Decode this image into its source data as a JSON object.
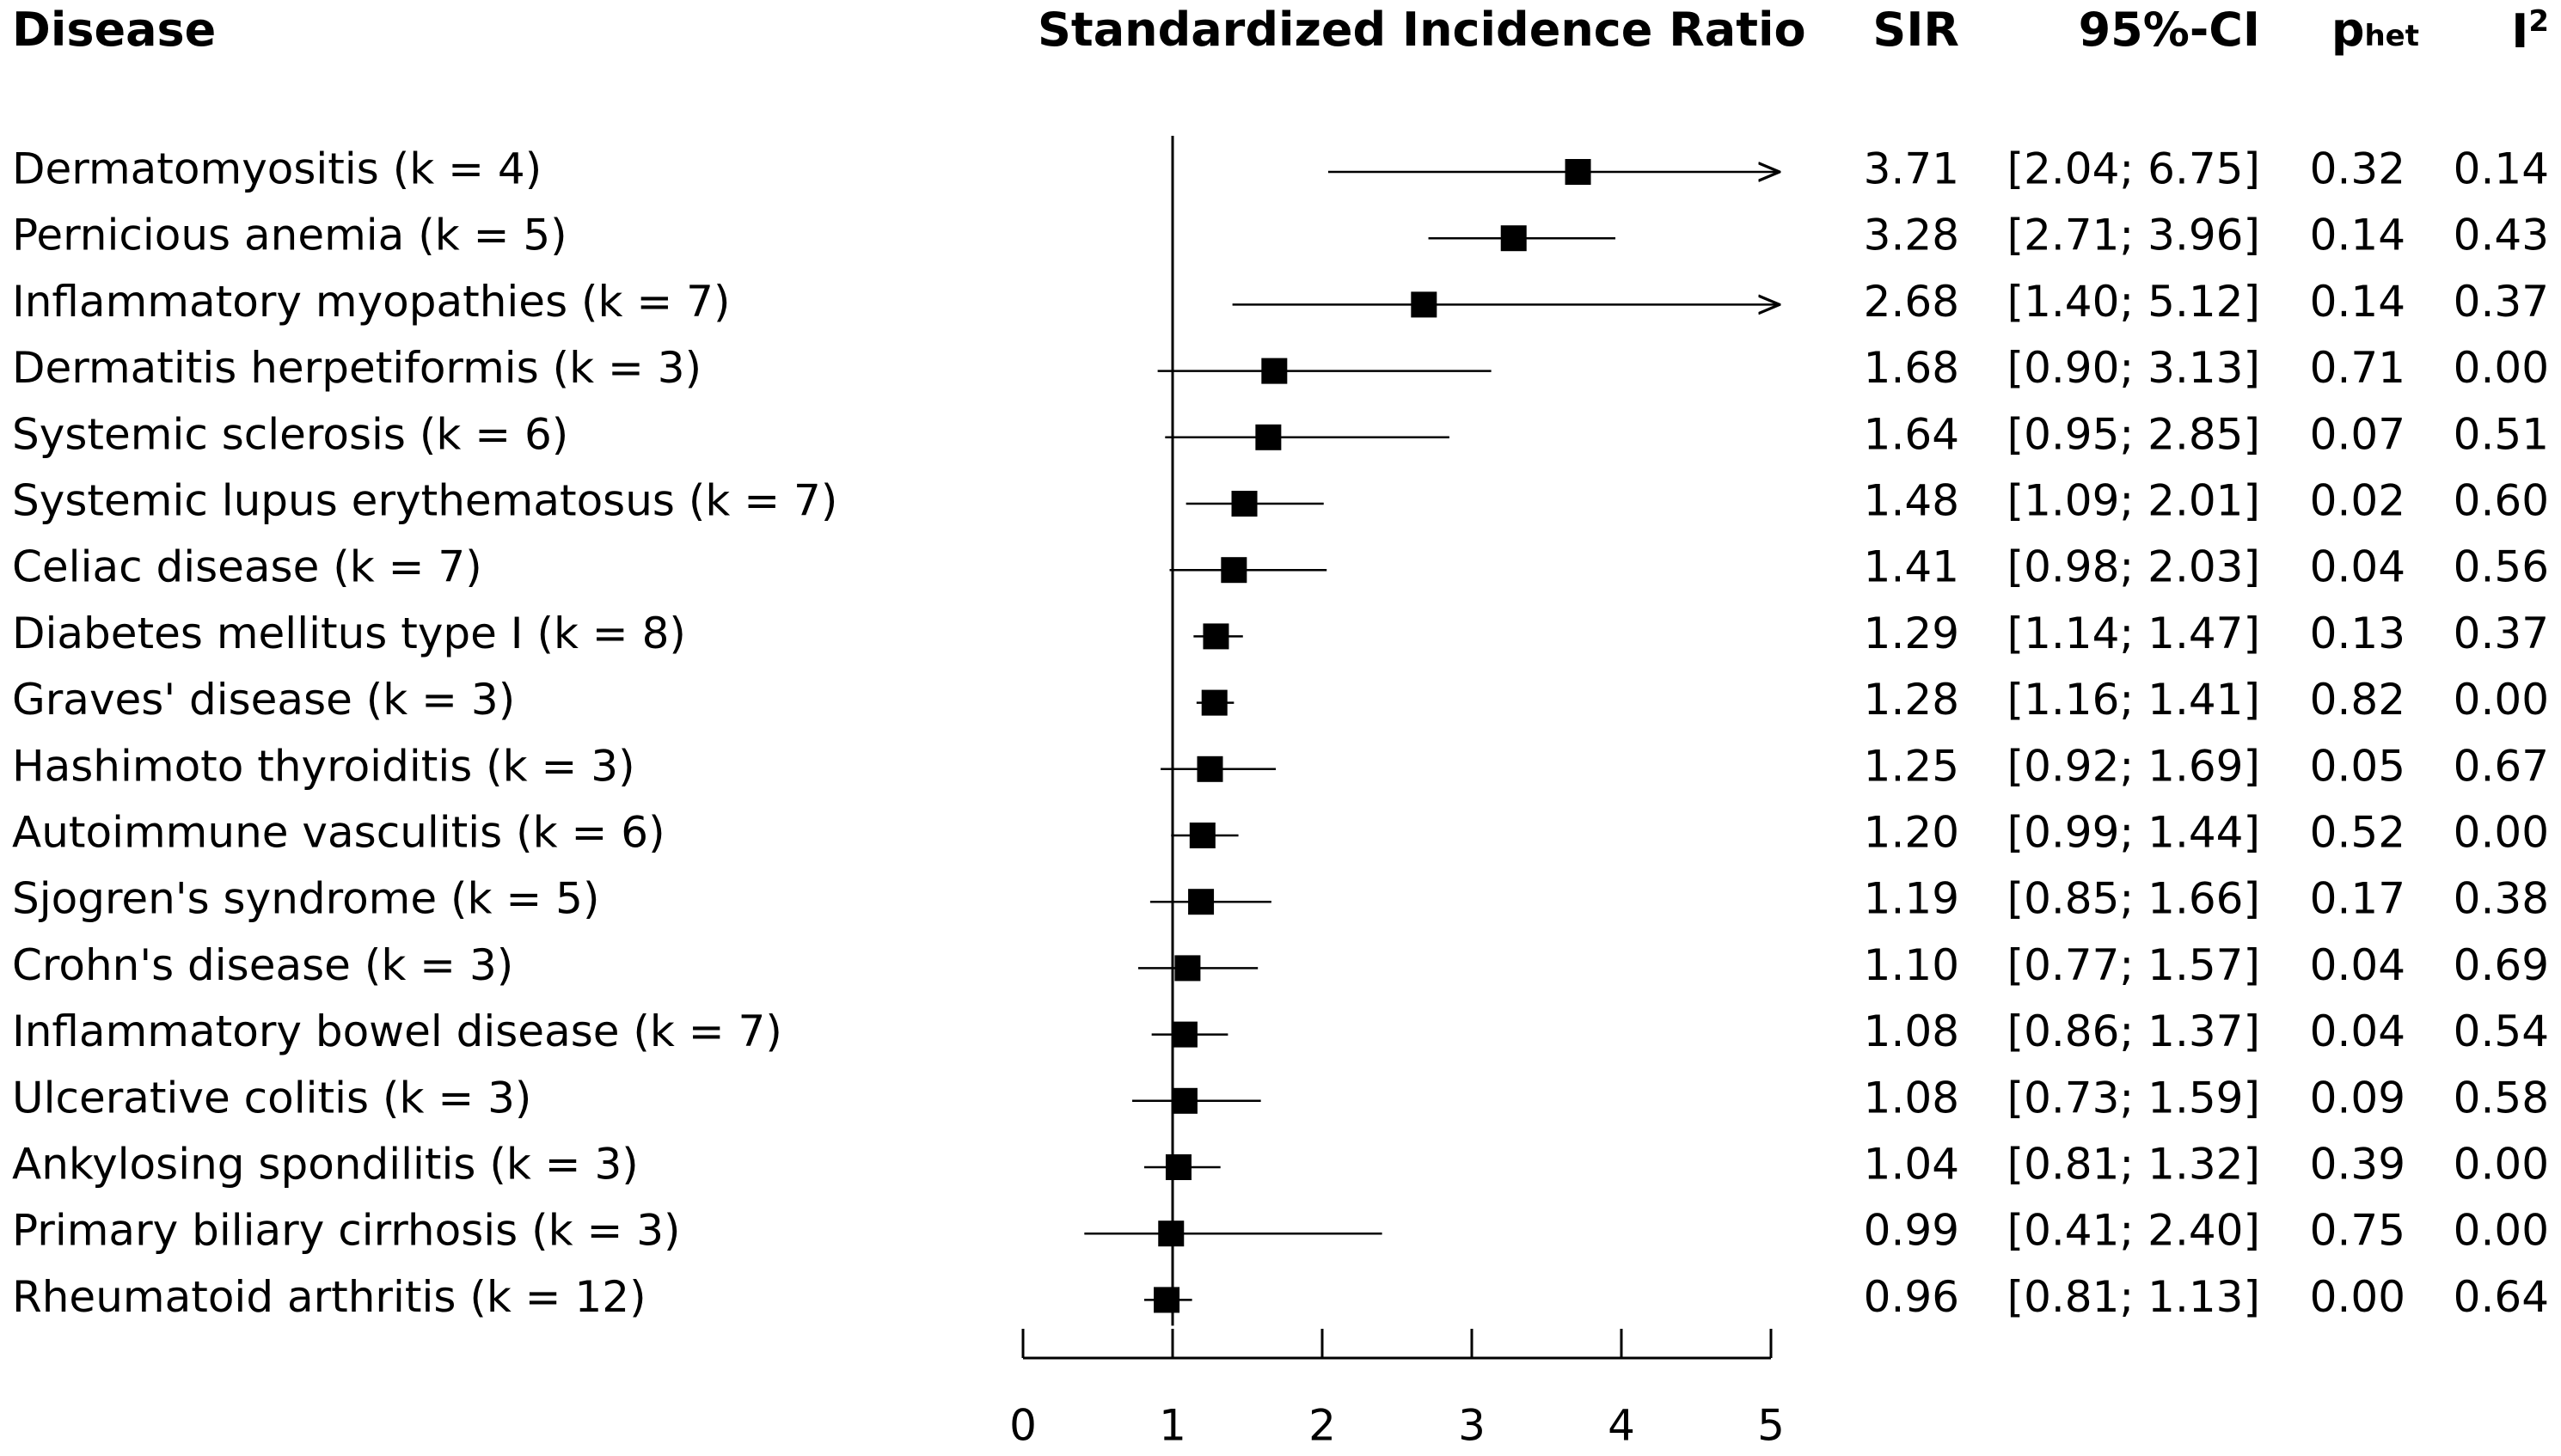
{
  "headers": {
    "disease": "Disease",
    "chart_title": "Standardized Incidence Ratio",
    "sir": "SIR",
    "ci": "95%-CI",
    "phet_p": "p",
    "phet_sub": "het",
    "i2_base": "I",
    "i2_sup": "2"
  },
  "chart_data": {
    "type": "forest",
    "title": "Standardized Incidence Ratio",
    "xlabel": "",
    "xlim": [
      0,
      5
    ],
    "xticks": [
      "0",
      "1",
      "2",
      "3",
      "4",
      "5"
    ],
    "reference_line": 1,
    "rows": [
      {
        "label": "Dermatomyositis (k = 4)",
        "sir": 3.71,
        "lower": 2.04,
        "upper": 6.75,
        "sir_text": "3.71",
        "ci_text": "[2.04; 6.75]",
        "phet_text": "0.32",
        "i2_text": "0.14"
      },
      {
        "label": "Pernicious anemia (k = 5)",
        "sir": 3.28,
        "lower": 2.71,
        "upper": 3.96,
        "sir_text": "3.28",
        "ci_text": "[2.71; 3.96]",
        "phet_text": "0.14",
        "i2_text": "0.43"
      },
      {
        "label": "Inflammatory myopathies (k = 7)",
        "sir": 2.68,
        "lower": 1.4,
        "upper": 5.12,
        "sir_text": "2.68",
        "ci_text": "[1.40; 5.12]",
        "phet_text": "0.14",
        "i2_text": "0.37"
      },
      {
        "label": "Dermatitis herpetiformis (k = 3)",
        "sir": 1.68,
        "lower": 0.9,
        "upper": 3.13,
        "sir_text": "1.68",
        "ci_text": "[0.90; 3.13]",
        "phet_text": "0.71",
        "i2_text": "0.00"
      },
      {
        "label": "Systemic sclerosis (k = 6)",
        "sir": 1.64,
        "lower": 0.95,
        "upper": 2.85,
        "sir_text": "1.64",
        "ci_text": "[0.95; 2.85]",
        "phet_text": "0.07",
        "i2_text": "0.51"
      },
      {
        "label": "Systemic lupus erythematosus (k = 7)",
        "sir": 1.48,
        "lower": 1.09,
        "upper": 2.01,
        "sir_text": "1.48",
        "ci_text": "[1.09; 2.01]",
        "phet_text": "0.02",
        "i2_text": "0.60"
      },
      {
        "label": "Celiac disease (k = 7)",
        "sir": 1.41,
        "lower": 0.98,
        "upper": 2.03,
        "sir_text": "1.41",
        "ci_text": "[0.98; 2.03]",
        "phet_text": "0.04",
        "i2_text": "0.56"
      },
      {
        "label": "Diabetes mellitus type I (k = 8)",
        "sir": 1.29,
        "lower": 1.14,
        "upper": 1.47,
        "sir_text": "1.29",
        "ci_text": "[1.14; 1.47]",
        "phet_text": "0.13",
        "i2_text": "0.37"
      },
      {
        "label": "Graves' disease (k = 3)",
        "sir": 1.28,
        "lower": 1.16,
        "upper": 1.41,
        "sir_text": "1.28",
        "ci_text": "[1.16; 1.41]",
        "phet_text": "0.82",
        "i2_text": "0.00"
      },
      {
        "label": "Hashimoto thyroiditis (k = 3)",
        "sir": 1.25,
        "lower": 0.92,
        "upper": 1.69,
        "sir_text": "1.25",
        "ci_text": "[0.92; 1.69]",
        "phet_text": "0.05",
        "i2_text": "0.67"
      },
      {
        "label": "Autoimmune vasculitis (k = 6)",
        "sir": 1.2,
        "lower": 0.99,
        "upper": 1.44,
        "sir_text": "1.20",
        "ci_text": "[0.99; 1.44]",
        "phet_text": "0.52",
        "i2_text": "0.00"
      },
      {
        "label": "Sjogren's syndrome (k = 5)",
        "sir": 1.19,
        "lower": 0.85,
        "upper": 1.66,
        "sir_text": "1.19",
        "ci_text": "[0.85; 1.66]",
        "phet_text": "0.17",
        "i2_text": "0.38"
      },
      {
        "label": "Crohn's disease (k = 3)",
        "sir": 1.1,
        "lower": 0.77,
        "upper": 1.57,
        "sir_text": "1.10",
        "ci_text": "[0.77; 1.57]",
        "phet_text": "0.04",
        "i2_text": "0.69"
      },
      {
        "label": "Inflammatory bowel disease (k = 7)",
        "sir": 1.08,
        "lower": 0.86,
        "upper": 1.37,
        "sir_text": "1.08",
        "ci_text": "[0.86; 1.37]",
        "phet_text": "0.04",
        "i2_text": "0.54"
      },
      {
        "label": "Ulcerative colitis (k = 3)",
        "sir": 1.08,
        "lower": 0.73,
        "upper": 1.59,
        "sir_text": "1.08",
        "ci_text": "[0.73; 1.59]",
        "phet_text": "0.09",
        "i2_text": "0.58"
      },
      {
        "label": "Ankylosing spondilitis (k = 3)",
        "sir": 1.04,
        "lower": 0.81,
        "upper": 1.32,
        "sir_text": "1.04",
        "ci_text": "[0.81; 1.32]",
        "phet_text": "0.39",
        "i2_text": "0.00"
      },
      {
        "label": "Primary biliary cirrhosis (k = 3)",
        "sir": 0.99,
        "lower": 0.41,
        "upper": 2.4,
        "sir_text": "0.99",
        "ci_text": "[0.41; 2.40]",
        "phet_text": "0.75",
        "i2_text": "0.00"
      },
      {
        "label": "Rheumatoid arthritis (k = 12)",
        "sir": 0.96,
        "lower": 0.81,
        "upper": 1.13,
        "sir_text": "0.96",
        "ci_text": "[0.81; 1.13]",
        "phet_text": "0.00",
        "i2_text": "0.64"
      }
    ]
  }
}
